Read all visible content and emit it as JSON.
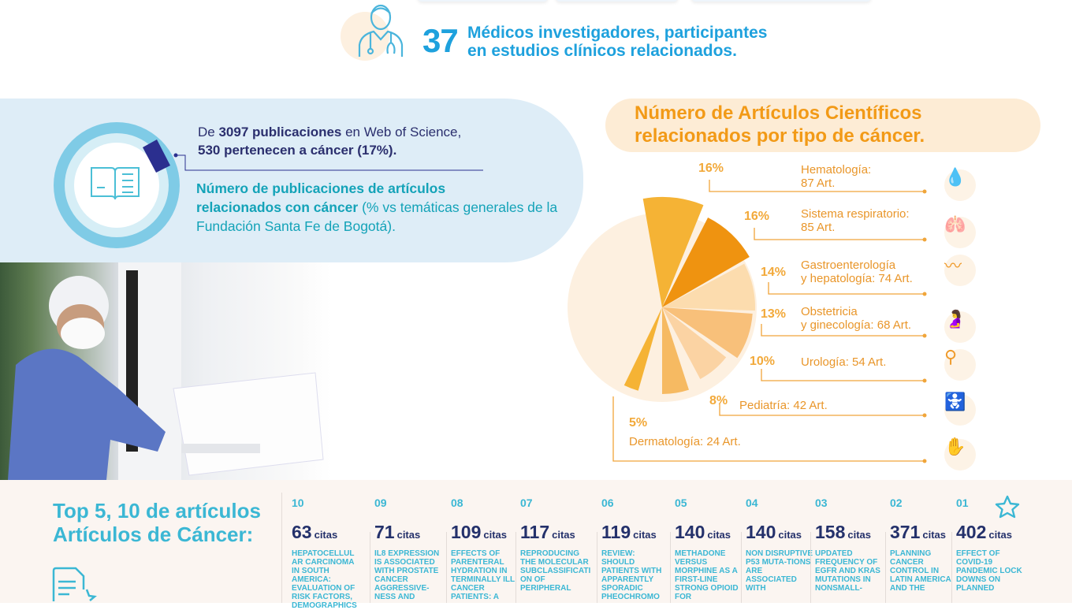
{
  "header": {
    "doctors_count": "37",
    "doctors_text_1": "Médicos investigadores, participantes",
    "doctors_text_2": "en estudios clínicos relacionados."
  },
  "publications": {
    "line1_pre": "De ",
    "line1_bold": "3097 publicaciones",
    "line1_post": " en Web of Science,",
    "line2": "530 pertenecen a cáncer (17%).",
    "title_bold_1": "Número de publicaciones de artículos",
    "title_bold_2": "relacionados con cáncer",
    "title_rest": " (% vs temáticas generales de la Fundación Santa Fe de Bogotá).",
    "cancer_share_percent": 17
  },
  "chart_data": {
    "type": "pie",
    "title": "Número de Artículos Científicos relacionados por tipo de cáncer.",
    "categories": [
      {
        "pct": "16%",
        "label": "Hematología:",
        "label2": "87 Art.",
        "value": 87,
        "icon": "blood-drop-hand-icon",
        "color": "#f5b335"
      },
      {
        "pct": "16%",
        "label": "Sistema respiratorio:",
        "label2": "85 Art.",
        "value": 85,
        "icon": "lungs-icon",
        "color": "#ef9310"
      },
      {
        "pct": "14%",
        "label": "Gastroenterología",
        "label2": "y hepatología: 74 Art.",
        "value": 74,
        "icon": "intestine-icon",
        "color": "#fcdcae"
      },
      {
        "pct": "13%",
        "label": "Obstetricia",
        "label2": "y ginecología: 68 Art.",
        "value": 68,
        "icon": "pregnant-woman-icon",
        "color": "#f8c07a"
      },
      {
        "pct": "10%",
        "label": "Urología: 54 Art.",
        "label2": "",
        "value": 54,
        "icon": "kidneys-icon",
        "color": "#fbd3a3"
      },
      {
        "pct": "8%",
        "label": "Pediatría: 42 Art.",
        "label2": "",
        "value": 42,
        "icon": "baby-icon",
        "color": "#f6ba62"
      },
      {
        "pct": "5%",
        "label": "Dermatología: 24 Art.",
        "label2": "",
        "value": 24,
        "icon": "hand-icon",
        "color": "#f5b335"
      }
    ]
  },
  "top_articles": {
    "title_1": "Top 5, 10 de artículos",
    "title_2": "Artículos de Cáncer:",
    "citas_label": "citas",
    "items": [
      {
        "rank": "10",
        "count": "63",
        "title": "HEPATOCELLULAR CARCINOMA IN SOUTH AMERICA: EVALUATION OF RISK FACTORS, DEMOGRAPHICS"
      },
      {
        "rank": "09",
        "count": "71",
        "title": "IL8 EXPRESSION IS ASSOCIATED WITH PROSTATE CANCER AGGRESSIVE-NESS AND"
      },
      {
        "rank": "08",
        "count": "109",
        "title": "EFFECTS OF PARENTERAL HYDRATION IN TERMINALLY ILL CANCER PATIENTS: A"
      },
      {
        "rank": "07",
        "count": "117",
        "title": "REPRODUCING THE MOLECULAR SUBCLASSIFICATION OF PERIPHERAL"
      },
      {
        "rank": "06",
        "count": "119",
        "title": "REVIEW: SHOULD PATIENTS WITH APPARENTLY SPORADIC PHEOCHROMO"
      },
      {
        "rank": "05",
        "count": "140",
        "title": "METHADONE VERSUS MORPHINE AS A FIRST-LINE STRONG OPIOID FOR"
      },
      {
        "rank": "04",
        "count": "140",
        "title": "NON DISRUPTIVE P53 MUTA-TIONS ARE ASSOCIATED WITH"
      },
      {
        "rank": "03",
        "count": "158",
        "title": "UPDATED FREQUENCY OF EGFR AND KRAS MUTATIONS IN NONSMALL-"
      },
      {
        "rank": "02",
        "count": "371",
        "title": "PLANNING CANCER CONTROL IN LATIN AMERICA AND THE"
      },
      {
        "rank": "01",
        "count": "402",
        "title": "EFFECT OF COVID-19 PANDEMIC LOCK DOWNS ON PLANNED"
      }
    ]
  }
}
